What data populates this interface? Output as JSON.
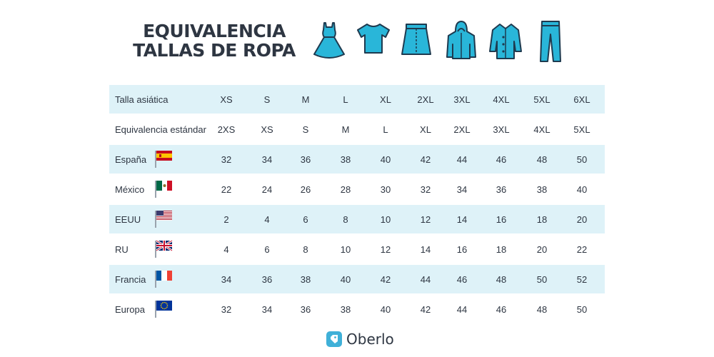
{
  "title": {
    "line1": "EQUIVALENCIA",
    "line2": "TALLAS DE ROPA"
  },
  "colors": {
    "accent": "#29b6d9",
    "row_band": "#def2f8",
    "text": "#2e3642"
  },
  "clothing_icons": [
    "dress-icon",
    "tshirt-icon",
    "skirt-icon",
    "hoodie-icon",
    "coat-icon",
    "pants-icon"
  ],
  "table": {
    "rows": [
      {
        "label": "Talla asiática",
        "flag": "",
        "values": [
          "XS",
          "S",
          "M",
          "L",
          "XL",
          "2XL",
          "3XL",
          "4XL",
          "5XL",
          "6XL"
        ]
      },
      {
        "label": "Equivalencia estándar",
        "flag": "",
        "values": [
          "2XS",
          "XS",
          "S",
          "M",
          "L",
          "XL",
          "2XL",
          "3XL",
          "4XL",
          "5XL"
        ]
      },
      {
        "label": "España",
        "flag": "flag-spain-icon",
        "values": [
          "32",
          "34",
          "36",
          "38",
          "40",
          "42",
          "44",
          "46",
          "48",
          "50"
        ]
      },
      {
        "label": "México",
        "flag": "flag-mexico-icon",
        "values": [
          "22",
          "24",
          "26",
          "28",
          "30",
          "32",
          "34",
          "36",
          "38",
          "40"
        ]
      },
      {
        "label": "EEUU",
        "flag": "flag-usa-icon",
        "values": [
          "2",
          "4",
          "6",
          "8",
          "10",
          "12",
          "14",
          "16",
          "18",
          "20"
        ]
      },
      {
        "label": "RU",
        "flag": "flag-uk-icon",
        "values": [
          "4",
          "6",
          "8",
          "10",
          "12",
          "14",
          "16",
          "18",
          "20",
          "22"
        ]
      },
      {
        "label": "Francia",
        "flag": "flag-france-icon",
        "values": [
          "34",
          "36",
          "38",
          "40",
          "42",
          "44",
          "46",
          "48",
          "50",
          "52"
        ]
      },
      {
        "label": "Europa",
        "flag": "flag-eu-icon",
        "values": [
          "32",
          "34",
          "36",
          "38",
          "40",
          "42",
          "44",
          "46",
          "48",
          "50"
        ]
      }
    ]
  },
  "logo": {
    "text": "Oberlo"
  }
}
